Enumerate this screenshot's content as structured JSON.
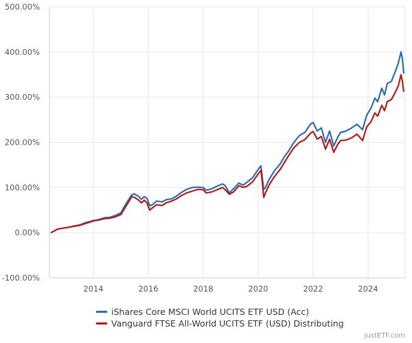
{
  "chart_data": {
    "type": "line",
    "title": "",
    "xlabel": "",
    "ylabel": "",
    "y_unit": "%",
    "ylim": [
      -100,
      500
    ],
    "xlim": [
      2012.4,
      2025.35
    ],
    "yticks": [
      -100,
      0,
      100,
      200,
      300,
      400,
      500
    ],
    "ytick_labels": [
      "-100.00%",
      "0.00%",
      "100.00%",
      "200.00%",
      "300.00%",
      "400.00%",
      "500.00%"
    ],
    "xticks": [
      2014,
      2016,
      2018,
      2020,
      2022,
      2024
    ],
    "xtick_labels": [
      "2014",
      "2016",
      "2018",
      "2020",
      "2022",
      "2024"
    ],
    "grid": true,
    "legend_position": "bottom",
    "series": [
      {
        "name": "iShares Core MSCI World UCITS ETF USD (Acc)",
        "color": "#2f6bad",
        "points": [
          [
            2012.45,
            0
          ],
          [
            2012.55,
            3
          ],
          [
            2012.7,
            8
          ],
          [
            2012.9,
            10
          ],
          [
            2013.1,
            12
          ],
          [
            2013.3,
            15
          ],
          [
            2013.5,
            17
          ],
          [
            2013.7,
            22
          ],
          [
            2013.9,
            25
          ],
          [
            2014.0,
            27
          ],
          [
            2014.2,
            29
          ],
          [
            2014.4,
            33
          ],
          [
            2014.6,
            34
          ],
          [
            2014.8,
            38
          ],
          [
            2015.0,
            44
          ],
          [
            2015.1,
            55
          ],
          [
            2015.25,
            70
          ],
          [
            2015.4,
            84
          ],
          [
            2015.5,
            86
          ],
          [
            2015.65,
            80
          ],
          [
            2015.75,
            74
          ],
          [
            2015.85,
            80
          ],
          [
            2015.95,
            76
          ],
          [
            2016.05,
            60
          ],
          [
            2016.15,
            62
          ],
          [
            2016.3,
            70
          ],
          [
            2016.5,
            68
          ],
          [
            2016.65,
            73
          ],
          [
            2016.85,
            75
          ],
          [
            2017.0,
            80
          ],
          [
            2017.2,
            89
          ],
          [
            2017.4,
            96
          ],
          [
            2017.6,
            100
          ],
          [
            2017.8,
            101
          ],
          [
            2018.0,
            100
          ],
          [
            2018.1,
            94
          ],
          [
            2018.3,
            97
          ],
          [
            2018.5,
            103
          ],
          [
            2018.7,
            108
          ],
          [
            2018.8,
            104
          ],
          [
            2018.95,
            88
          ],
          [
            2019.1,
            97
          ],
          [
            2019.3,
            110
          ],
          [
            2019.45,
            105
          ],
          [
            2019.6,
            112
          ],
          [
            2019.8,
            122
          ],
          [
            2020.0,
            140
          ],
          [
            2020.1,
            148
          ],
          [
            2020.15,
            122
          ],
          [
            2020.2,
            96
          ],
          [
            2020.25,
            98
          ],
          [
            2020.4,
            118
          ],
          [
            2020.6,
            138
          ],
          [
            2020.8,
            152
          ],
          [
            2020.95,
            168
          ],
          [
            2021.1,
            180
          ],
          [
            2021.3,
            200
          ],
          [
            2021.5,
            215
          ],
          [
            2021.7,
            222
          ],
          [
            2021.9,
            240
          ],
          [
            2022.0,
            244
          ],
          [
            2022.15,
            225
          ],
          [
            2022.3,
            232
          ],
          [
            2022.45,
            200
          ],
          [
            2022.6,
            225
          ],
          [
            2022.75,
            192
          ],
          [
            2022.9,
            212
          ],
          [
            2023.0,
            222
          ],
          [
            2023.2,
            225
          ],
          [
            2023.4,
            232
          ],
          [
            2023.6,
            240
          ],
          [
            2023.8,
            228
          ],
          [
            2023.95,
            260
          ],
          [
            2024.1,
            275
          ],
          [
            2024.25,
            298
          ],
          [
            2024.35,
            290
          ],
          [
            2024.5,
            320
          ],
          [
            2024.6,
            305
          ],
          [
            2024.7,
            330
          ],
          [
            2024.85,
            335
          ],
          [
            2025.0,
            358
          ],
          [
            2025.1,
            375
          ],
          [
            2025.2,
            400
          ],
          [
            2025.25,
            385
          ],
          [
            2025.3,
            352
          ]
        ]
      },
      {
        "name": "Vanguard FTSE All-World UCITS ETF (USD) Distributing",
        "color": "#b31b1b",
        "points": [
          [
            2012.45,
            0
          ],
          [
            2012.55,
            3
          ],
          [
            2012.7,
            8
          ],
          [
            2012.9,
            10
          ],
          [
            2013.1,
            12
          ],
          [
            2013.3,
            14
          ],
          [
            2013.5,
            16
          ],
          [
            2013.7,
            20
          ],
          [
            2013.9,
            24
          ],
          [
            2014.0,
            26
          ],
          [
            2014.2,
            28
          ],
          [
            2014.4,
            31
          ],
          [
            2014.6,
            32
          ],
          [
            2014.8,
            35
          ],
          [
            2015.0,
            40
          ],
          [
            2015.1,
            50
          ],
          [
            2015.25,
            65
          ],
          [
            2015.4,
            80
          ],
          [
            2015.5,
            78
          ],
          [
            2015.65,
            72
          ],
          [
            2015.75,
            66
          ],
          [
            2015.85,
            72
          ],
          [
            2015.95,
            66
          ],
          [
            2016.05,
            50
          ],
          [
            2016.15,
            55
          ],
          [
            2016.3,
            62
          ],
          [
            2016.5,
            60
          ],
          [
            2016.65,
            66
          ],
          [
            2016.85,
            70
          ],
          [
            2017.0,
            74
          ],
          [
            2017.2,
            82
          ],
          [
            2017.4,
            88
          ],
          [
            2017.6,
            92
          ],
          [
            2017.8,
            96
          ],
          [
            2018.0,
            95
          ],
          [
            2018.1,
            88
          ],
          [
            2018.3,
            90
          ],
          [
            2018.5,
            95
          ],
          [
            2018.7,
            100
          ],
          [
            2018.8,
            95
          ],
          [
            2018.95,
            85
          ],
          [
            2019.1,
            90
          ],
          [
            2019.3,
            104
          ],
          [
            2019.45,
            100
          ],
          [
            2019.6,
            103
          ],
          [
            2019.8,
            113
          ],
          [
            2020.0,
            130
          ],
          [
            2020.1,
            138
          ],
          [
            2020.15,
            112
          ],
          [
            2020.2,
            78
          ],
          [
            2020.25,
            86
          ],
          [
            2020.4,
            106
          ],
          [
            2020.6,
            125
          ],
          [
            2020.8,
            140
          ],
          [
            2020.95,
            155
          ],
          [
            2021.1,
            170
          ],
          [
            2021.3,
            188
          ],
          [
            2021.5,
            200
          ],
          [
            2021.7,
            206
          ],
          [
            2021.9,
            220
          ],
          [
            2022.0,
            224
          ],
          [
            2022.15,
            207
          ],
          [
            2022.3,
            213
          ],
          [
            2022.45,
            185
          ],
          [
            2022.6,
            207
          ],
          [
            2022.75,
            178
          ],
          [
            2022.9,
            196
          ],
          [
            2023.0,
            204
          ],
          [
            2023.2,
            205
          ],
          [
            2023.4,
            210
          ],
          [
            2023.6,
            218
          ],
          [
            2023.8,
            204
          ],
          [
            2023.95,
            234
          ],
          [
            2024.1,
            245
          ],
          [
            2024.25,
            265
          ],
          [
            2024.35,
            258
          ],
          [
            2024.5,
            282
          ],
          [
            2024.6,
            270
          ],
          [
            2024.7,
            290
          ],
          [
            2024.85,
            295
          ],
          [
            2025.0,
            312
          ],
          [
            2025.1,
            325
          ],
          [
            2025.2,
            350
          ],
          [
            2025.25,
            335
          ],
          [
            2025.3,
            312
          ]
        ]
      }
    ]
  },
  "watermark": "justETF.com"
}
